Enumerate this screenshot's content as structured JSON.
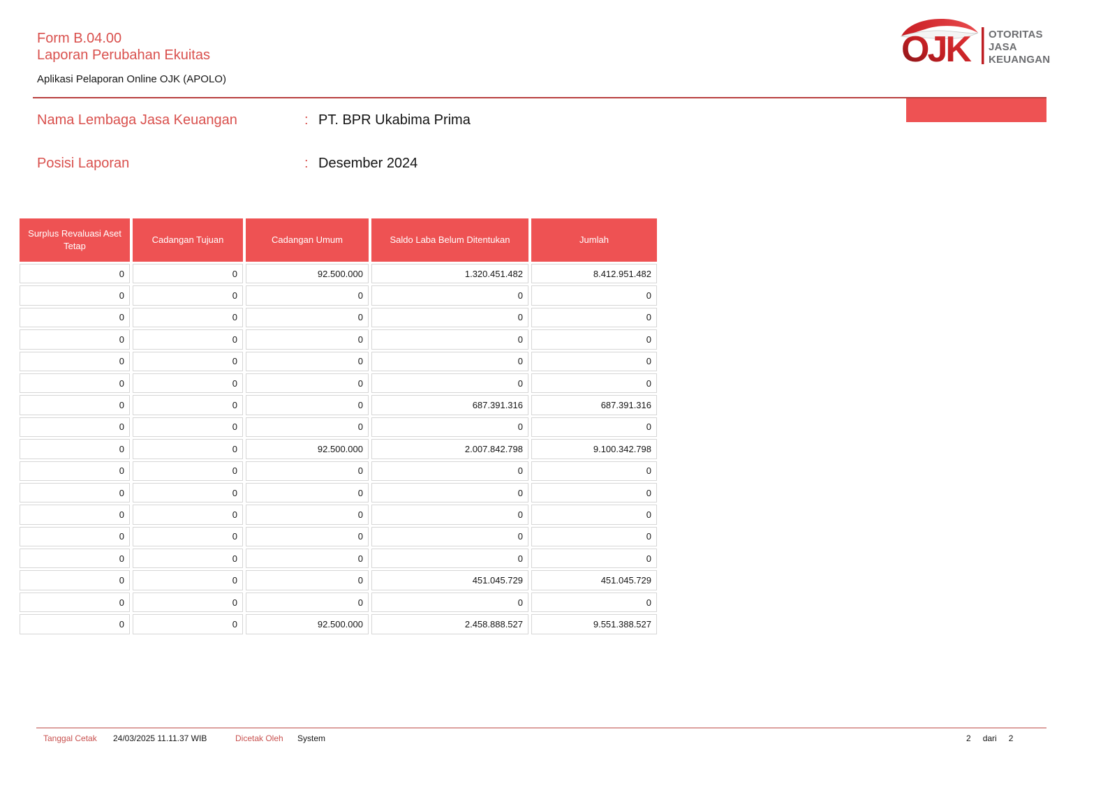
{
  "header": {
    "form_code": "Form B.04.00",
    "form_title": "Laporan Perubahan Ekuitas",
    "app_name": "Aplikasi Pelaporan Online OJK (APOLO)"
  },
  "logo": {
    "brand": "OJK",
    "org_lines": [
      "OTORITAS",
      "JASA",
      "KEUANGAN"
    ]
  },
  "fields": [
    {
      "label": "Nama Lembaga Jasa Keuangan",
      "separator": ":",
      "value": "PT. BPR Ukabima Prima"
    },
    {
      "label": "Posisi Laporan",
      "separator": ":",
      "value": "Desember 2024"
    }
  ],
  "table": {
    "columns": [
      "Surplus Revaluasi Aset Tetap",
      "Cadangan Tujuan",
      "Cadangan Umum",
      "Saldo Laba Belum Ditentukan",
      "Jumlah"
    ],
    "rows": [
      [
        "0",
        "0",
        "92.500.000",
        "1.320.451.482",
        "8.412.951.482"
      ],
      [
        "0",
        "0",
        "0",
        "0",
        "0"
      ],
      [
        "0",
        "0",
        "0",
        "0",
        "0"
      ],
      [
        "0",
        "0",
        "0",
        "0",
        "0"
      ],
      [
        "0",
        "0",
        "0",
        "0",
        "0"
      ],
      [
        "0",
        "0",
        "0",
        "0",
        "0"
      ],
      [
        "0",
        "0",
        "0",
        "687.391.316",
        "687.391.316"
      ],
      [
        "0",
        "0",
        "0",
        "0",
        "0"
      ],
      [
        "0",
        "0",
        "92.500.000",
        "2.007.842.798",
        "9.100.342.798"
      ],
      [
        "0",
        "0",
        "0",
        "0",
        "0"
      ],
      [
        "0",
        "0",
        "0",
        "0",
        "0"
      ],
      [
        "0",
        "0",
        "0",
        "0",
        "0"
      ],
      [
        "0",
        "0",
        "0",
        "0",
        "0"
      ],
      [
        "0",
        "0",
        "0",
        "0",
        "0"
      ],
      [
        "0",
        "0",
        "0",
        "451.045.729",
        "451.045.729"
      ],
      [
        "0",
        "0",
        "0",
        "0",
        "0"
      ],
      [
        "0",
        "0",
        "92.500.000",
        "2.458.888.527",
        "9.551.388.527"
      ]
    ]
  },
  "footer": {
    "print_date_label": "Tanggal Cetak",
    "print_date_value": "24/03/2025 11.11.37 WIB",
    "printed_by_label": "Dicetak Oleh",
    "printed_by_value": "System",
    "page_current": "2",
    "page_separator": "dari",
    "page_total": "2"
  },
  "colors": {
    "table_header_red": "#EE5253",
    "accent_text_red": "#D9504D",
    "top_rule_red": "#B8403E",
    "footer_rule_pink": "#DDA09E",
    "footer_label_red": "#C8514F",
    "cell_border_gray": "#D6D6D6",
    "logo_gray": "#6D6E71",
    "logo_red": "#C01E22"
  }
}
